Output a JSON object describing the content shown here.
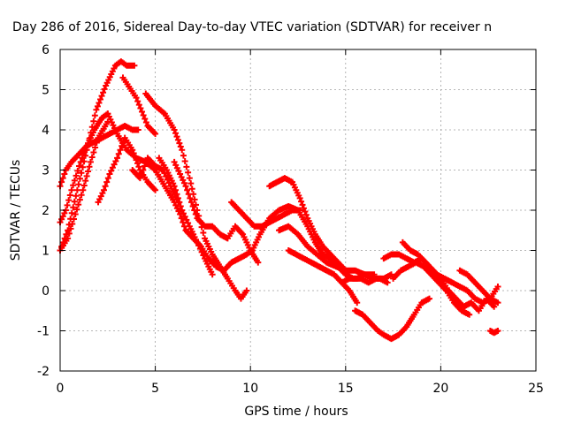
{
  "chart_data": {
    "type": "scatter",
    "title": "Day 286 of 2016, Sidereal Day-to-day VTEC variation (SDTVAR) for receiver n",
    "xlabel": "GPS time / hours",
    "ylabel": "SDTVAR / TECUs",
    "xlim": [
      0,
      25
    ],
    "ylim": [
      -2,
      6
    ],
    "xticks": [
      "0",
      "5",
      "10",
      "15",
      "20",
      "25"
    ],
    "yticks": [
      "-2",
      "-1",
      "0",
      "1",
      "2",
      "3",
      "4",
      "5",
      "6"
    ],
    "grid": true,
    "marker": "+",
    "color": "#ff0000",
    "series": [
      {
        "x": [
          0.0,
          0.4,
          0.9,
          1.4,
          1.9,
          2.4,
          2.9,
          3.2,
          3.5,
          3.9
        ],
        "y": [
          1.0,
          1.5,
          2.5,
          3.5,
          4.5,
          5.1,
          5.6,
          5.7,
          5.6,
          5.6
        ]
      },
      {
        "x": [
          3.3,
          4.0,
          4.6,
          5.0
        ],
        "y": [
          5.3,
          4.8,
          4.1,
          3.9
        ]
      },
      {
        "x": [
          4.5,
          5.0,
          5.5,
          6.0,
          6.4,
          6.8,
          7.2,
          7.6,
          8.0,
          8.4,
          8.8,
          9.2,
          9.5,
          9.8
        ],
        "y": [
          4.9,
          4.6,
          4.4,
          4.0,
          3.5,
          2.8,
          2.0,
          1.3,
          0.9,
          0.6,
          0.3,
          0.0,
          -0.2,
          0.0
        ]
      },
      {
        "x": [
          0.0,
          0.3,
          0.6,
          1.0,
          1.4,
          1.8,
          2.2,
          2.5
        ],
        "y": [
          1.7,
          2.0,
          2.5,
          3.1,
          3.6,
          4.0,
          4.3,
          4.4
        ]
      },
      {
        "x": [
          2.5,
          3.0,
          3.5,
          4.0,
          4.5,
          5.0,
          5.5,
          6.0,
          6.3,
          6.6,
          7.0,
          7.4,
          7.8,
          8.2
        ],
        "y": [
          4.4,
          3.9,
          3.5,
          3.3,
          3.2,
          3.0,
          2.6,
          2.2,
          1.9,
          1.5,
          1.3,
          1.1,
          0.8,
          0.6
        ]
      },
      {
        "x": [
          8.2,
          8.6,
          9.0,
          9.4,
          9.8,
          10.1,
          10.5,
          11.0,
          11.5,
          12.0,
          12.5,
          13.0,
          13.4,
          13.8,
          14.2
        ],
        "y": [
          0.6,
          0.5,
          0.7,
          0.8,
          0.9,
          1.0,
          1.4,
          1.8,
          2.0,
          2.1,
          2.0,
          1.6,
          1.2,
          0.9,
          0.8
        ]
      },
      {
        "x": [
          14.2,
          14.6,
          15.0,
          15.4,
          15.8,
          16.2,
          16.6,
          17.0,
          17.4
        ],
        "y": [
          0.8,
          0.6,
          0.4,
          0.3,
          0.3,
          0.2,
          0.3,
          0.3,
          0.4
        ]
      },
      {
        "x": [
          0.0,
          0.3,
          0.6,
          1.0,
          1.4,
          1.8,
          2.2,
          2.6,
          3.0,
          3.4,
          3.8,
          4.1
        ],
        "y": [
          2.6,
          3.0,
          3.2,
          3.4,
          3.6,
          3.7,
          3.8,
          3.9,
          4.0,
          4.1,
          4.0,
          4.0
        ]
      },
      {
        "x": [
          0.0,
          0.4,
          0.8,
          1.2,
          1.6,
          2.0,
          2.5
        ],
        "y": [
          1.0,
          1.3,
          1.9,
          2.5,
          3.2,
          3.8,
          4.2
        ]
      },
      {
        "x": [
          3.8,
          4.2,
          4.6,
          5.0,
          5.4,
          5.8,
          6.2
        ],
        "y": [
          3.0,
          2.8,
          3.3,
          3.1,
          3.0,
          2.6,
          2.2
        ]
      },
      {
        "x": [
          6.0,
          6.3,
          6.6,
          6.9,
          7.2,
          7.6,
          8.0,
          8.4,
          8.8,
          9.2,
          9.6,
          10.0,
          10.4
        ],
        "y": [
          3.2,
          2.9,
          2.6,
          2.2,
          1.8,
          1.6,
          1.6,
          1.4,
          1.3,
          1.6,
          1.4,
          1.0,
          0.7
        ]
      },
      {
        "x": [
          2.0,
          2.3,
          2.6,
          3.0,
          3.4,
          3.8,
          4.2,
          4.6,
          5.0
        ],
        "y": [
          2.2,
          2.5,
          2.9,
          3.3,
          3.8,
          3.5,
          3.0,
          2.7,
          2.5
        ]
      },
      {
        "x": [
          5.2,
          5.6,
          6.0,
          6.4,
          6.8,
          7.2,
          7.6,
          8.0
        ],
        "y": [
          3.3,
          3.0,
          2.6,
          2.0,
          1.6,
          1.2,
          0.8,
          0.4
        ]
      },
      {
        "x": [
          9.0,
          9.4,
          9.8,
          10.2,
          10.6,
          11.0,
          11.4,
          11.8,
          12.2,
          12.6
        ],
        "y": [
          2.2,
          2.0,
          1.8,
          1.6,
          1.6,
          1.7,
          1.8,
          1.9,
          2.0,
          2.0
        ]
      },
      {
        "x": [
          11.0,
          11.4,
          11.8,
          12.2,
          12.6,
          13.0,
          13.4,
          13.8,
          14.2,
          14.6,
          15.0
        ],
        "y": [
          2.6,
          2.7,
          2.8,
          2.7,
          2.3,
          1.8,
          1.4,
          1.1,
          0.9,
          0.7,
          0.5
        ]
      },
      {
        "x": [
          11.5,
          12.0,
          12.5,
          13.0,
          13.5,
          14.0,
          14.5,
          15.0,
          15.5,
          16.0,
          16.5
        ],
        "y": [
          1.5,
          1.6,
          1.4,
          1.1,
          0.9,
          0.7,
          0.6,
          0.5,
          0.5,
          0.4,
          0.4
        ]
      },
      {
        "x": [
          12.0,
          12.4,
          12.8,
          13.2,
          13.6,
          14.0,
          14.4,
          14.8,
          15.2,
          15.6
        ],
        "y": [
          1.0,
          0.9,
          0.8,
          0.7,
          0.6,
          0.5,
          0.4,
          0.2,
          0.0,
          -0.3
        ]
      },
      {
        "x": [
          15.5,
          15.9,
          16.3,
          16.7,
          17.0,
          17.4,
          17.8,
          18.2,
          18.6,
          19.0,
          19.4
        ],
        "y": [
          -0.5,
          -0.6,
          -0.8,
          -1.0,
          -1.1,
          -1.2,
          -1.1,
          -0.9,
          -0.6,
          -0.3,
          -0.2
        ]
      },
      {
        "x": [
          14.8,
          15.2,
          15.6,
          16.0,
          16.4,
          16.8,
          17.2
        ],
        "y": [
          0.2,
          0.3,
          0.3,
          0.4,
          0.3,
          0.3,
          0.2
        ]
      },
      {
        "x": [
          17.0,
          17.4,
          17.8,
          18.2,
          18.6,
          19.0,
          19.4,
          19.8,
          20.2,
          20.6,
          21.0,
          21.4,
          21.8,
          22.2,
          22.6,
          23.0
        ],
        "y": [
          0.8,
          0.9,
          0.9,
          0.8,
          0.7,
          0.8,
          0.6,
          0.4,
          0.3,
          0.2,
          0.1,
          0.0,
          -0.2,
          -0.3,
          -0.2,
          0.1
        ]
      },
      {
        "x": [
          18.0,
          18.4,
          18.8,
          19.2,
          19.6,
          20.0,
          20.4,
          20.8,
          21.2,
          21.6,
          22.0,
          22.4,
          22.8
        ],
        "y": [
          1.2,
          1.0,
          0.9,
          0.7,
          0.5,
          0.3,
          0.0,
          -0.2,
          -0.4,
          -0.3,
          -0.5,
          -0.2,
          -0.4
        ]
      },
      {
        "x": [
          17.5,
          17.9,
          18.3,
          18.7,
          19.1,
          19.5,
          19.9,
          20.3,
          20.7,
          21.1,
          21.5
        ],
        "y": [
          0.3,
          0.5,
          0.6,
          0.7,
          0.6,
          0.4,
          0.2,
          0.0,
          -0.3,
          -0.5,
          -0.6
        ]
      },
      {
        "x": [
          21.0,
          21.4,
          21.8,
          22.2,
          22.6,
          23.0
        ],
        "y": [
          0.5,
          0.4,
          0.2,
          0.0,
          -0.2,
          -0.3
        ]
      },
      {
        "x": [
          22.6,
          22.8,
          23.0
        ],
        "y": [
          -1.0,
          -1.05,
          -1.0
        ]
      }
    ]
  }
}
